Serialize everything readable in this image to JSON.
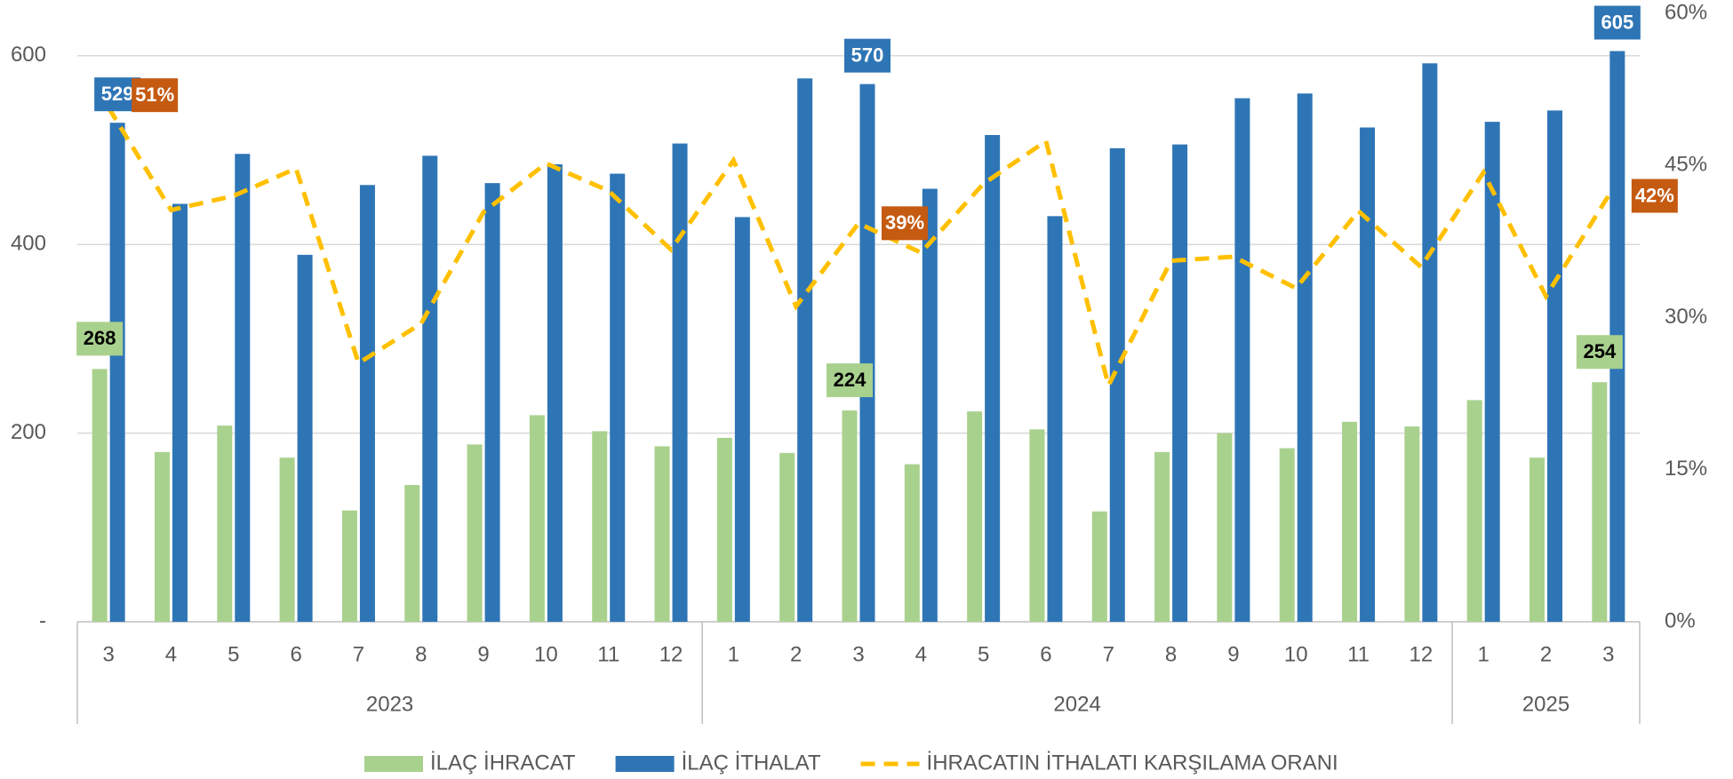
{
  "chart_data": {
    "type": "bar",
    "categories": [
      "3",
      "4",
      "5",
      "6",
      "7",
      "8",
      "9",
      "10",
      "11",
      "12",
      "1",
      "2",
      "3",
      "4",
      "5",
      "6",
      "7",
      "8",
      "9",
      "10",
      "11",
      "12",
      "1",
      "2",
      "3"
    ],
    "groups": [
      {
        "name": "2023",
        "size": 10
      },
      {
        "name": "2024",
        "size": 12
      },
      {
        "name": "2025",
        "size": 3
      }
    ],
    "series": [
      {
        "name": "İLAÇ İHRACAT",
        "type": "bar",
        "color": "#a9d18e",
        "values": [
          268,
          180,
          208,
          174,
          118,
          145,
          188,
          219,
          202,
          186,
          195,
          179,
          224,
          167,
          223,
          204,
          117,
          180,
          200,
          184,
          212,
          207,
          235,
          174,
          254
        ],
        "value_labels": [
          "268",
          null,
          null,
          null,
          null,
          null,
          null,
          null,
          null,
          null,
          null,
          null,
          "224",
          null,
          null,
          null,
          null,
          null,
          null,
          null,
          null,
          null,
          null,
          null,
          "254"
        ]
      },
      {
        "name": "İLAÇ İTHALAT",
        "type": "bar",
        "color": "#2e75b6",
        "values": [
          529,
          443,
          496,
          389,
          463,
          494,
          465,
          485,
          475,
          507,
          429,
          576,
          570,
          459,
          516,
          430,
          502,
          506,
          555,
          560,
          524,
          592,
          530,
          542,
          605
        ],
        "value_labels": [
          "529",
          null,
          null,
          null,
          null,
          null,
          null,
          null,
          null,
          null,
          null,
          null,
          "570",
          null,
          null,
          null,
          null,
          null,
          null,
          null,
          null,
          null,
          null,
          null,
          "605"
        ]
      },
      {
        "name": "İHRACATIN İTHALATI KARŞILAMA ORANI",
        "type": "line",
        "axis": "y2",
        "color": "#ffc000",
        "values": [
          50.7,
          40.6,
          42.0,
          44.7,
          25.5,
          29.4,
          40.4,
          45.2,
          42.5,
          36.7,
          45.5,
          31.1,
          39.3,
          36.4,
          43.2,
          47.4,
          23.3,
          35.6,
          36.0,
          32.9,
          40.5,
          35.0,
          44.3,
          32.1,
          42.0
        ],
        "value_labels": [
          "51%",
          null,
          null,
          null,
          null,
          null,
          null,
          null,
          null,
          null,
          null,
          null,
          "39%",
          null,
          null,
          null,
          null,
          null,
          null,
          null,
          null,
          null,
          null,
          null,
          "42%"
        ],
        "label_color": "#c55a11"
      }
    ],
    "ylim": [
      0,
      645
    ],
    "yticks": [
      {
        "value": 0,
        "label": "-"
      },
      200,
      400,
      600
    ],
    "y2lim": [
      0,
      60
    ],
    "y2ticks": [
      {
        "value": 0,
        "label": "0%"
      },
      {
        "value": 15,
        "label": "15%"
      },
      {
        "value": 30,
        "label": "30%"
      },
      {
        "value": 45,
        "label": "45%"
      },
      {
        "value": 60,
        "label": "60%"
      }
    ],
    "grid": true,
    "legend": "bottom"
  }
}
